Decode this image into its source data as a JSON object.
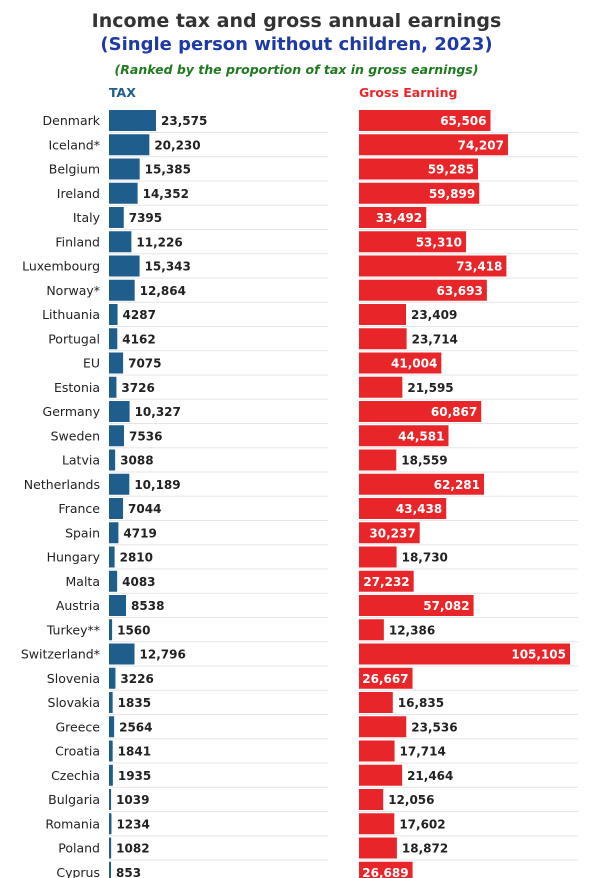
{
  "chart_data": {
    "type": "bar",
    "title": "Income tax and gross annual earnings",
    "subtitle": "(Single person without children, 2023)",
    "note": "(Ranked by the proportion of tax in gross earnings)",
    "colors": {
      "tax": "#1f5d8c",
      "gross": "#e8262a"
    },
    "categories": [
      "Denmark",
      "Iceland*",
      "Belgium",
      "Ireland",
      "Italy",
      "Finland",
      "Luxembourg",
      "Norway*",
      "Lithuania",
      "Portugal",
      "EU",
      "Estonia",
      "Germany",
      "Sweden",
      "Latvia",
      "Netherlands",
      "France",
      "Spain",
      "Hungary",
      "Malta",
      "Austria",
      "Turkey**",
      "Switzerland*",
      "Slovenia",
      "Slovakia",
      "Greece",
      "Croatia",
      "Czechia",
      "Bulgaria",
      "Romania",
      "Poland",
      "Cyprus"
    ],
    "series": [
      {
        "name": "TAX",
        "values": [
          23575,
          20230,
          15385,
          14352,
          7395,
          11226,
          15343,
          12864,
          4287,
          4162,
          7075,
          3726,
          10327,
          7536,
          3088,
          10189,
          7044,
          4719,
          2810,
          4083,
          8538,
          1560,
          12796,
          3226,
          1835,
          2564,
          1841,
          1935,
          1039,
          1234,
          1082,
          853
        ],
        "labels": [
          "23,575",
          "20,230",
          "15,385",
          "14,352",
          "7395",
          "11,226",
          "15,343",
          "12,864",
          "4287",
          "4162",
          "7075",
          "3726",
          "10,327",
          "7536",
          "3088",
          "10,189",
          "7044",
          "4719",
          "2810",
          "4083",
          "8538",
          "1560",
          "12,796",
          "3226",
          "1835",
          "2564",
          "1841",
          "1935",
          "1039",
          "1234",
          "1082",
          "853"
        ]
      },
      {
        "name": "Gross Earning",
        "values": [
          65506,
          74207,
          59285,
          59899,
          33492,
          53310,
          73418,
          63693,
          23409,
          23714,
          41004,
          21595,
          60867,
          44581,
          18559,
          62281,
          43438,
          30237,
          18730,
          27232,
          57082,
          12386,
          105105,
          26667,
          16835,
          23536,
          17714,
          21464,
          12056,
          17602,
          18872,
          26689
        ],
        "labels": [
          "65,506",
          "74,207",
          "59,285",
          "59,899",
          "33,492",
          "53,310",
          "73,418",
          "63,693",
          "23,409",
          "23,714",
          "41,004",
          "21,595",
          "60,867",
          "44,581",
          "18,559",
          "62,281",
          "43,438",
          "30,237",
          "18,730",
          "27,232",
          "57,082",
          "12,386",
          "105,105",
          "26,667",
          "16,835",
          "23,536",
          "17,714",
          "21,464",
          "12,056",
          "17,602",
          "18,872",
          "26,689"
        ]
      }
    ],
    "legend": "top-left column headers",
    "grid": "horizontal row separators"
  }
}
